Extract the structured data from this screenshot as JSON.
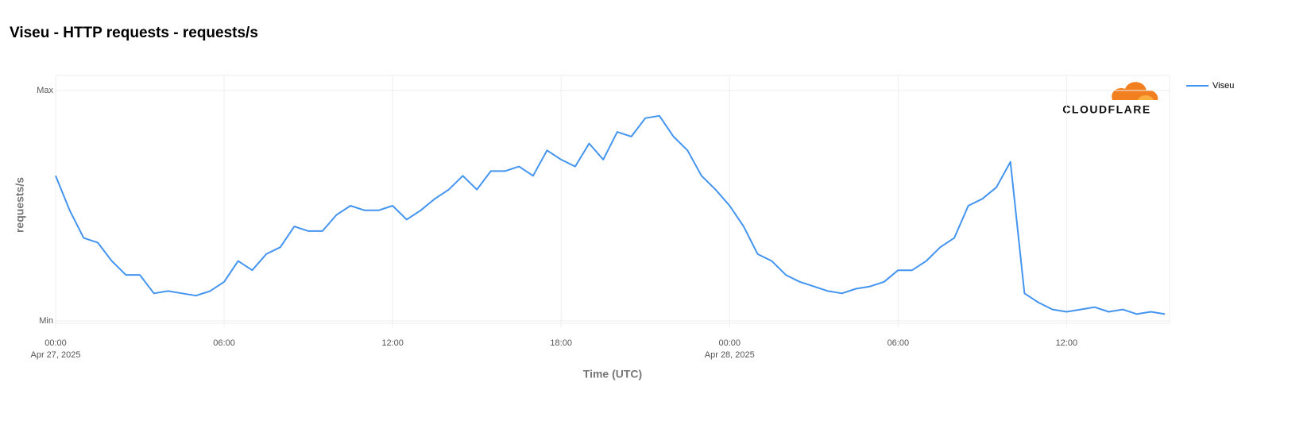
{
  "chart_data": {
    "type": "line",
    "title": "Viseu - HTTP requests - requests/s",
    "y_label": "requests/s",
    "x_label": "Time (UTC)",
    "logo": "CLOUDFLARE",
    "x": [
      "2025-04-27T00:00",
      "2025-04-27T00:30",
      "2025-04-27T01:00",
      "2025-04-27T01:30",
      "2025-04-27T02:00",
      "2025-04-27T02:30",
      "2025-04-27T03:00",
      "2025-04-27T03:30",
      "2025-04-27T04:00",
      "2025-04-27T04:30",
      "2025-04-27T05:00",
      "2025-04-27T05:30",
      "2025-04-27T06:00",
      "2025-04-27T06:30",
      "2025-04-27T07:00",
      "2025-04-27T07:30",
      "2025-04-27T08:00",
      "2025-04-27T08:30",
      "2025-04-27T09:00",
      "2025-04-27T09:30",
      "2025-04-27T10:00",
      "2025-04-27T10:30",
      "2025-04-27T11:00",
      "2025-04-27T11:30",
      "2025-04-27T12:00",
      "2025-04-27T12:30",
      "2025-04-27T13:00",
      "2025-04-27T13:30",
      "2025-04-27T14:00",
      "2025-04-27T14:30",
      "2025-04-27T15:00",
      "2025-04-27T15:30",
      "2025-04-27T16:00",
      "2025-04-27T16:30",
      "2025-04-27T17:00",
      "2025-04-27T17:30",
      "2025-04-27T18:00",
      "2025-04-27T18:30",
      "2025-04-27T19:00",
      "2025-04-27T19:30",
      "2025-04-27T20:00",
      "2025-04-27T20:30",
      "2025-04-27T21:00",
      "2025-04-27T21:30",
      "2025-04-27T22:00",
      "2025-04-27T22:30",
      "2025-04-27T23:00",
      "2025-04-27T23:30",
      "2025-04-28T00:00",
      "2025-04-28T00:30",
      "2025-04-28T01:00",
      "2025-04-28T01:30",
      "2025-04-28T02:00",
      "2025-04-28T02:30",
      "2025-04-28T03:00",
      "2025-04-28T03:30",
      "2025-04-28T04:00",
      "2025-04-28T04:30",
      "2025-04-28T05:00",
      "2025-04-28T05:30",
      "2025-04-28T06:00",
      "2025-04-28T06:30",
      "2025-04-28T07:00",
      "2025-04-28T07:30",
      "2025-04-28T08:00",
      "2025-04-28T08:30",
      "2025-04-28T09:00",
      "2025-04-28T09:30",
      "2025-04-28T10:00",
      "2025-04-28T10:30",
      "2025-04-28T11:00",
      "2025-04-28T11:30",
      "2025-04-28T12:00",
      "2025-04-28T12:30",
      "2025-04-28T13:00",
      "2025-04-28T13:30",
      "2025-04-28T14:00",
      "2025-04-28T14:30",
      "2025-04-28T15:00",
      "2025-04-28T15:30"
    ],
    "series": [
      {
        "name": "Viseu",
        "color": "#4394f0",
        "values": [
          63,
          48,
          36,
          34,
          26,
          20,
          20,
          12,
          13,
          12,
          11,
          13,
          17,
          26,
          22,
          29,
          32,
          41,
          39,
          39,
          46,
          50,
          48,
          48,
          50,
          44,
          48,
          53,
          57,
          63,
          57,
          65,
          65,
          67,
          63,
          74,
          70,
          67,
          77,
          70,
          82,
          80,
          88,
          89,
          80,
          74,
          63,
          57,
          50,
          41,
          29,
          26,
          20,
          17,
          15,
          13,
          12,
          14,
          15,
          17,
          22,
          22,
          26,
          32,
          36,
          50,
          53,
          58,
          69,
          12,
          8,
          5,
          4,
          5,
          6,
          4,
          5,
          3,
          4,
          3
        ]
      }
    ],
    "xlim": [
      "2025-04-27T00:00",
      "2025-04-28T15:40"
    ],
    "xticks": [
      {
        "value": "2025-04-27T00:00",
        "label": "00:00",
        "date": "Apr 27, 2025"
      },
      {
        "value": "2025-04-27T06:00",
        "label": "06:00"
      },
      {
        "value": "2025-04-27T12:00",
        "label": "12:00"
      },
      {
        "value": "2025-04-27T18:00",
        "label": "18:00"
      },
      {
        "value": "2025-04-28T00:00",
        "label": "00:00",
        "date": "Apr 28, 2025"
      },
      {
        "value": "2025-04-28T06:00",
        "label": "06:00"
      },
      {
        "value": "2025-04-28T12:00",
        "label": "12:00"
      }
    ],
    "ylim": [
      -1,
      106.5
    ],
    "yticks": [
      {
        "value": 0,
        "label": "Min"
      },
      {
        "value": 100,
        "label": "Max"
      }
    ],
    "grid": true,
    "legend": "right"
  }
}
